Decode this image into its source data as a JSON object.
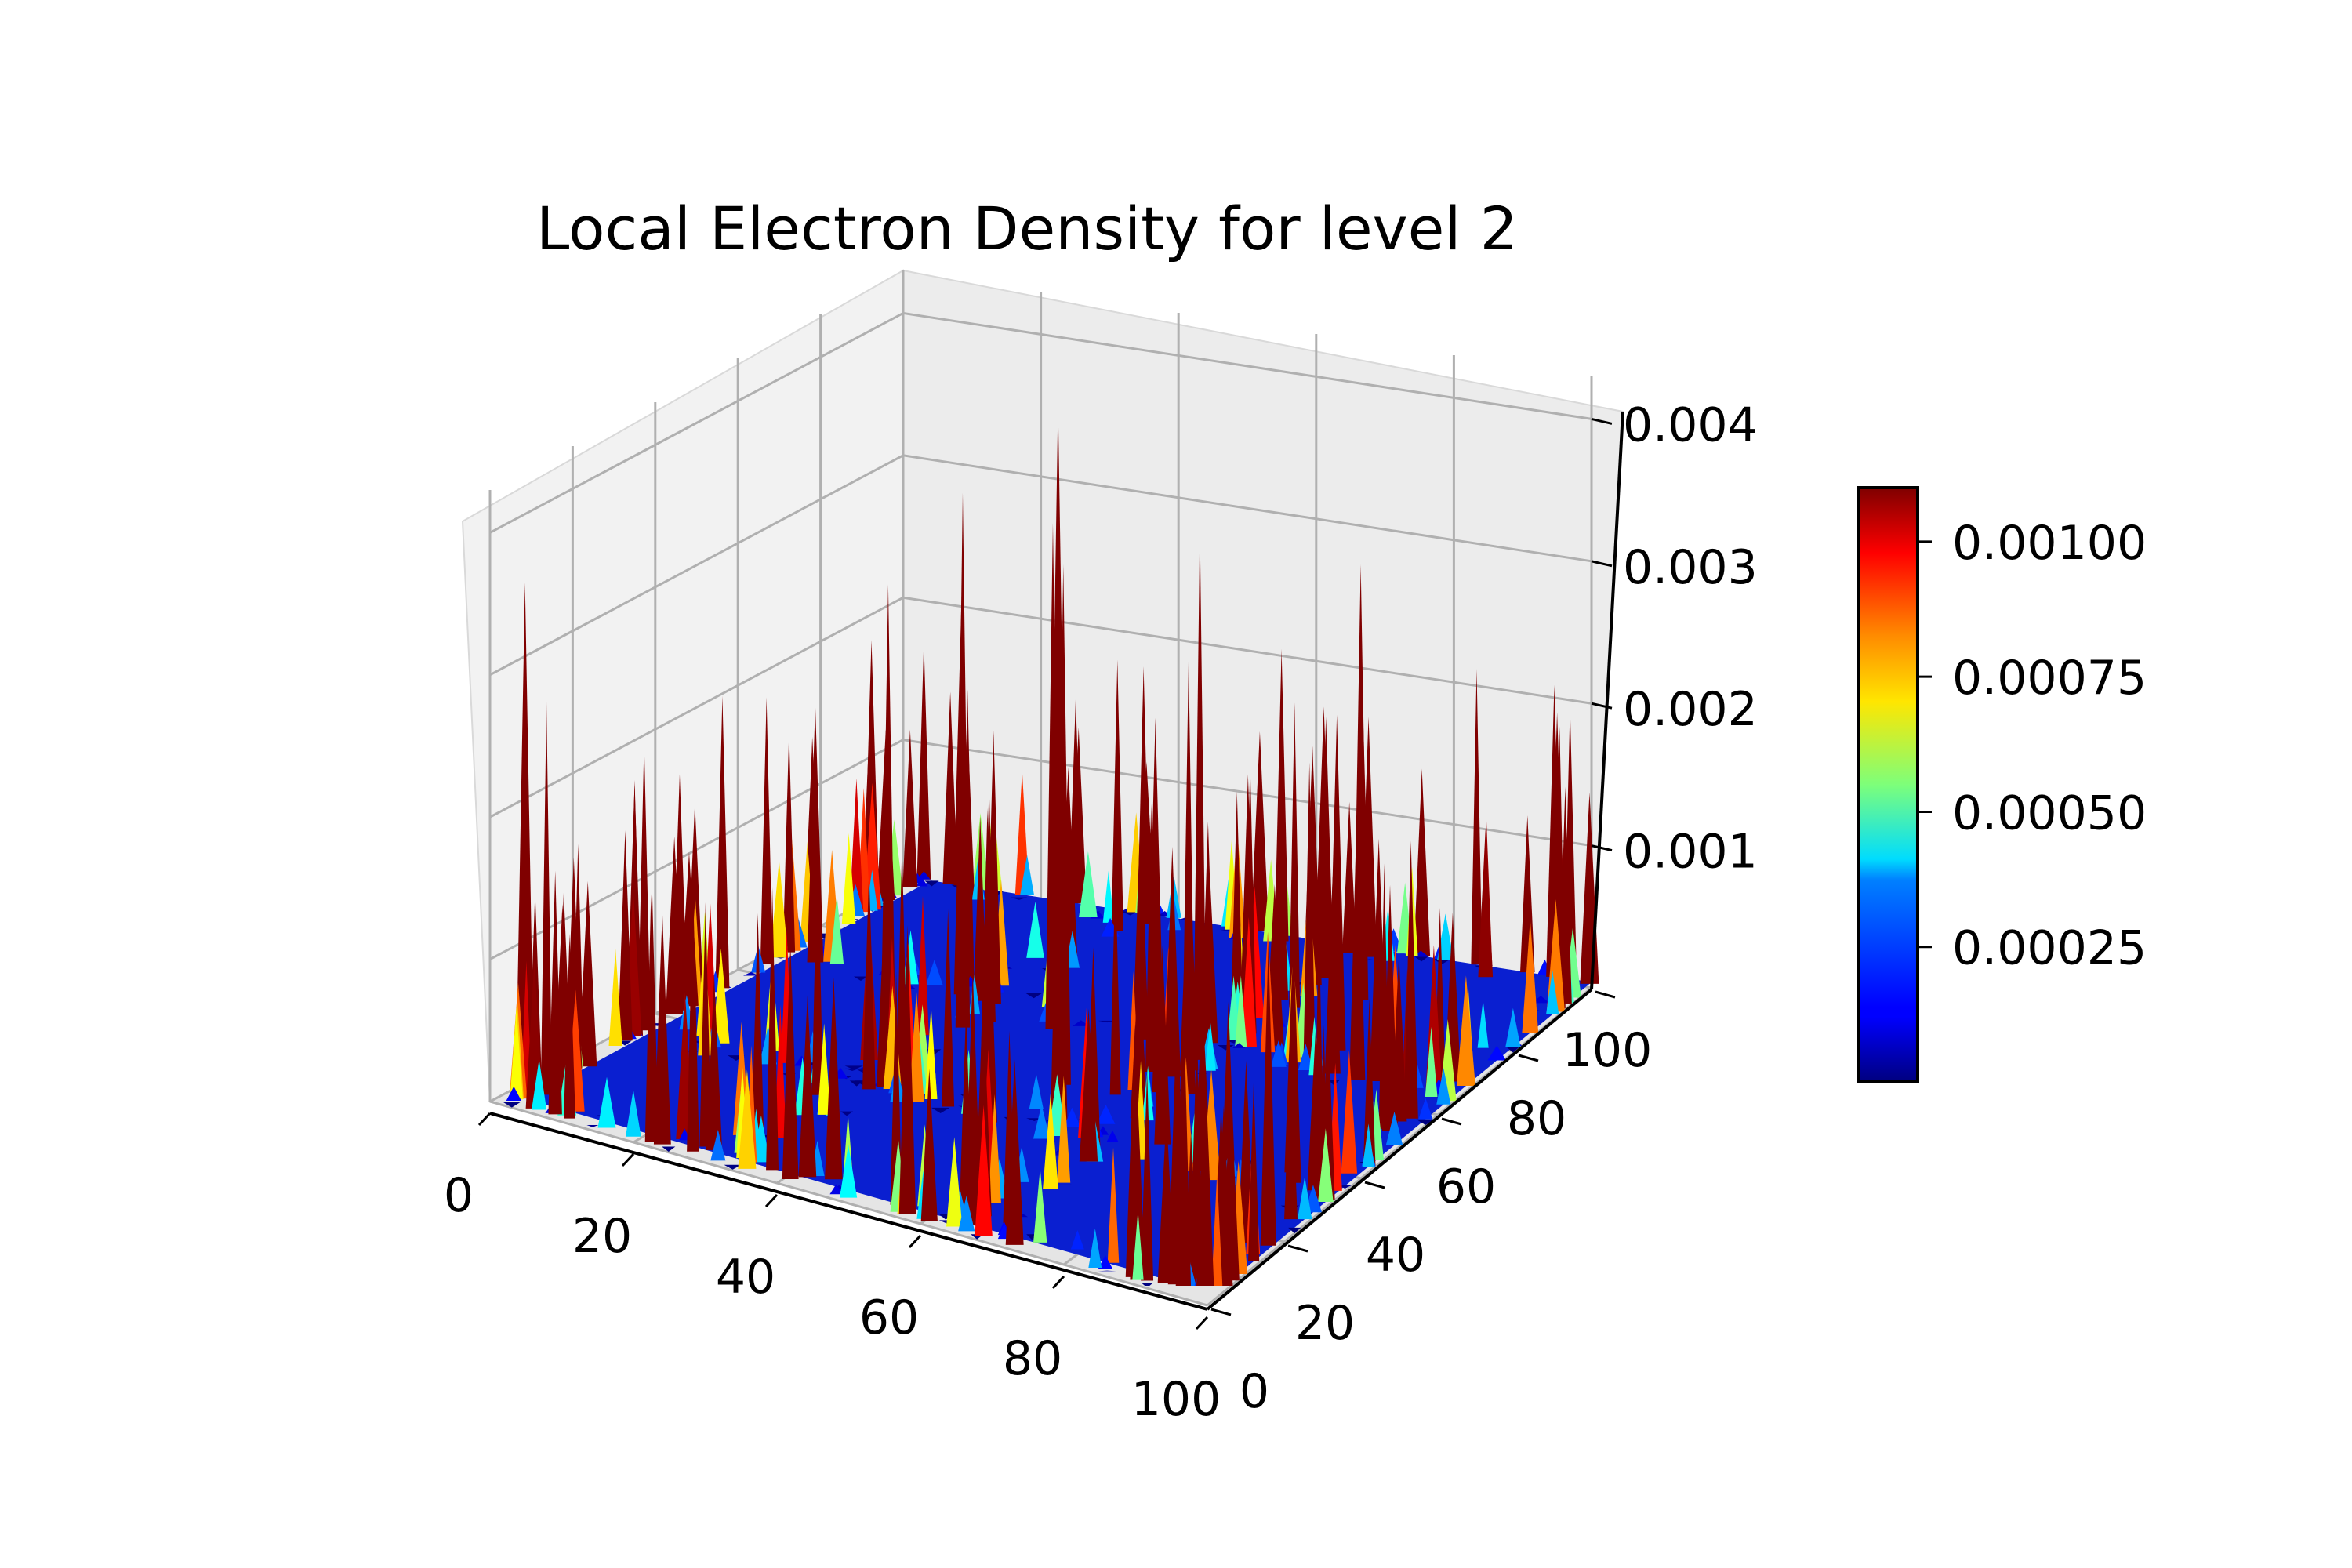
{
  "chart_data": {
    "type": "surface",
    "title": "Local Electron Density for level 2",
    "xlabel": "",
    "ylabel": "",
    "zlabel": "",
    "x_ticks": [
      "0",
      "20",
      "40",
      "60",
      "80",
      "100"
    ],
    "y_ticks": [
      "0",
      "20",
      "40",
      "60",
      "80",
      "100"
    ],
    "z_ticks": [
      "0.001",
      "0.002",
      "0.003",
      "0.004"
    ],
    "xlim": [
      0,
      100
    ],
    "ylim": [
      0,
      100
    ],
    "zlim": [
      0,
      0.0043
    ],
    "colormap": "jet",
    "colorbar": {
      "ticks": [
        "0.00025",
        "0.00050",
        "0.00075",
        "0.00100"
      ],
      "range": [
        0.0,
        0.0011
      ],
      "placement": "right"
    },
    "grid": true,
    "description_of_surface": "Mostly near-zero density with tall narrow spikes concentrated along the grid-cell boundaries around x≈0, 33, 66, 100 and y≈0, 33, 66, 100.",
    "peak_samples": [
      {
        "x": 2,
        "y": 5,
        "z": 0.0036
      },
      {
        "x": 5,
        "y": 5,
        "z": 0.0028
      },
      {
        "x": 33,
        "y": 40,
        "z": 0.0034
      },
      {
        "x": 35,
        "y": 55,
        "z": 0.0038
      },
      {
        "x": 40,
        "y": 70,
        "z": 0.0042
      },
      {
        "x": 45,
        "y": 60,
        "z": 0.0036
      },
      {
        "x": 55,
        "y": 45,
        "z": 0.0037
      },
      {
        "x": 60,
        "y": 35,
        "z": 0.0025
      },
      {
        "x": 66,
        "y": 60,
        "z": 0.0038
      },
      {
        "x": 70,
        "y": 50,
        "z": 0.0031
      },
      {
        "x": 66,
        "y": 5,
        "z": 0.0016
      },
      {
        "x": 75,
        "y": 85,
        "z": 0.0031
      },
      {
        "x": 80,
        "y": 70,
        "z": 0.0024
      },
      {
        "x": 98,
        "y": 98,
        "z": 0.002
      },
      {
        "x": 95,
        "y": 100,
        "z": 0.0019
      }
    ]
  }
}
